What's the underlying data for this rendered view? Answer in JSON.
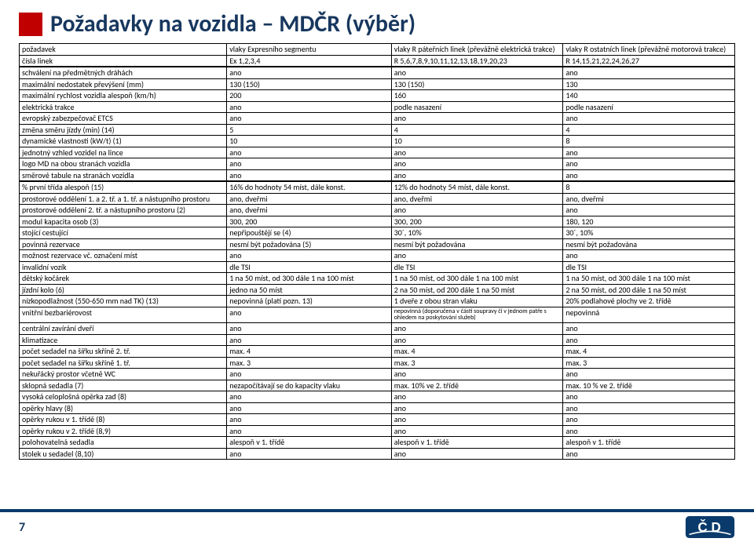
{
  "title": "Požadavky na vozidla – MDČR (výběr)",
  "pageNumber": "7",
  "colors": {
    "titleBox": "#c00000",
    "titleText": "#17375e",
    "footerBorder": "#0a3a6b",
    "logoBg": "#0a3a6b",
    "logoFg": "#ffffff"
  },
  "table": {
    "header": {
      "c0": "požadavek",
      "c1": "vlaky Expresního segmentu",
      "c2": "vlaky R páteřních linek (převážně elektrická trakce)",
      "c3": "vlaky R ostatních linek (převážně motorová trakce)"
    },
    "rows": [
      [
        "čísla linek",
        "Ex 1,2,3,4",
        "R 5,6,7,8,9,10,11,12,13,18,19,20,23",
        "R 14,15,21,22,24,26,27"
      ],
      [
        "schválení na předmětných dráhách",
        "ano",
        "ano",
        "ano"
      ],
      [
        "maximální nedostatek převýšení (mm)",
        "130 (150)",
        "130 (150)",
        "130"
      ],
      [
        "maximální rychlost vozidla alespoň (km/h)",
        "200",
        "160",
        "140"
      ],
      [
        "elektrická trakce",
        "ano",
        "podle nasazení",
        "podle nasazení"
      ],
      [
        "evropský zabezpečovač ETCS",
        "ano",
        "ano",
        "ano"
      ],
      [
        "změna směru jízdy (min) (14)",
        "5",
        "4",
        "4"
      ],
      [
        "dynamické vlastnosti (kW/t) (1)",
        "10",
        "10",
        "8"
      ],
      [
        "jednotný vzhled vozidel na lince",
        "ano",
        "ano",
        "ano"
      ],
      [
        "logo MD na obou stranách vozidla",
        "ano",
        "ano",
        "ano"
      ],
      [
        "směrové tabule na stranách vozidla",
        "ano",
        "ano",
        "ano"
      ],
      [
        "% první třída alespoň (15)",
        "16% do hodnoty 54 míst, dále konst.",
        "12% do hodnoty 54 míst, dále konst.",
        "8"
      ],
      [
        "prostorové oddělení 1. a 2. tř. a 1. tř. a nástupního prostoru",
        "ano, dveřmi",
        "ano, dveřmi",
        "ano, dveřmi"
      ],
      [
        "prostorové oddělení 2. tř. a nástupního prostoru (2)",
        "ano, dveřmi",
        "ano",
        "ano"
      ],
      [
        "modul kapacita osob (3)",
        "300, 200",
        "300, 200",
        "180, 120"
      ],
      [
        "stojící cestující",
        "nepřipouštějí se (4)",
        "30´, 10%",
        "30´, 10%"
      ],
      [
        "povinná rezervace",
        "nesmí být požadována (5)",
        "nesmí být požadována",
        "nesmí být požadována"
      ],
      [
        "možnost rezervace vč. označení míst",
        "ano",
        "ano",
        "ano"
      ],
      [
        "invalidní vozík",
        "dle TSI",
        "dle TSI",
        "dle TSI"
      ],
      [
        "dětský kočárek",
        "1 na 50 míst, od 300 dále 1 na 100 míst",
        "1 na 50 míst, od 300 dále 1 na 100 míst",
        "1 na 50 míst, od 300 dále 1 na 100 míst"
      ],
      [
        "jízdní kolo (6)",
        "jedno na 50 míst",
        "2 na 50 míst, od 200 dále 1 na 50 míst",
        "2 na 50 míst, od 200 dále 1 na 50 míst"
      ],
      [
        "nízkopodlažnost (550-650 mm nad TK) (13)",
        "nepovinná (platí pozn. 13)",
        "1 dveře z obou stran vlaku",
        "20% podlahové plochy ve 2. třídě"
      ],
      [
        "vnitřní bezbariérovost",
        "ano",
        "nepovinná (doporučena v části soupravy či v jednom patře s ohledem na poskytování služeb)",
        "nepovinná"
      ],
      [
        "centrální zavírání dveří",
        "ano",
        "ano",
        "ano"
      ],
      [
        "klimatizace",
        "ano",
        "ano",
        "ano"
      ],
      [
        "počet sedadel na šířku skříně 2. tř.",
        "max. 4",
        "max. 4",
        "max. 4"
      ],
      [
        "počet sedadel na šířku skříně 1. tř.",
        "max. 3",
        "max. 3",
        "max. 3"
      ],
      [
        "nekuřácký prostor včetně WC",
        "ano",
        "ano",
        "ano"
      ],
      [
        "sklopná sedadla (7)",
        "nezapočítávají se do kapacity vlaku",
        "max. 10% ve 2. třídě",
        "max. 10 % ve 2. třídě"
      ],
      [
        "vysoká celoplošná opěrka zad (8)",
        "ano",
        "ano",
        "ano"
      ],
      [
        "opěrky hlavy (8)",
        "ano",
        "ano",
        "ano"
      ],
      [
        "opěrky rukou v 1. třídě (8)",
        "ano",
        "ano",
        "ano"
      ],
      [
        "opěrky rukou v 2. třídě (8,9)",
        "ano",
        "ano",
        "ano"
      ],
      [
        "polohovatelná sedadla",
        "alespoň v 1. třídě",
        "alespoň v 1. třídě",
        "alespoň v 1. třídě"
      ],
      [
        "stolek u sedadel (8,10)",
        "ano",
        "ano",
        "ano"
      ]
    ],
    "sepRows": [
      1,
      11
    ]
  }
}
